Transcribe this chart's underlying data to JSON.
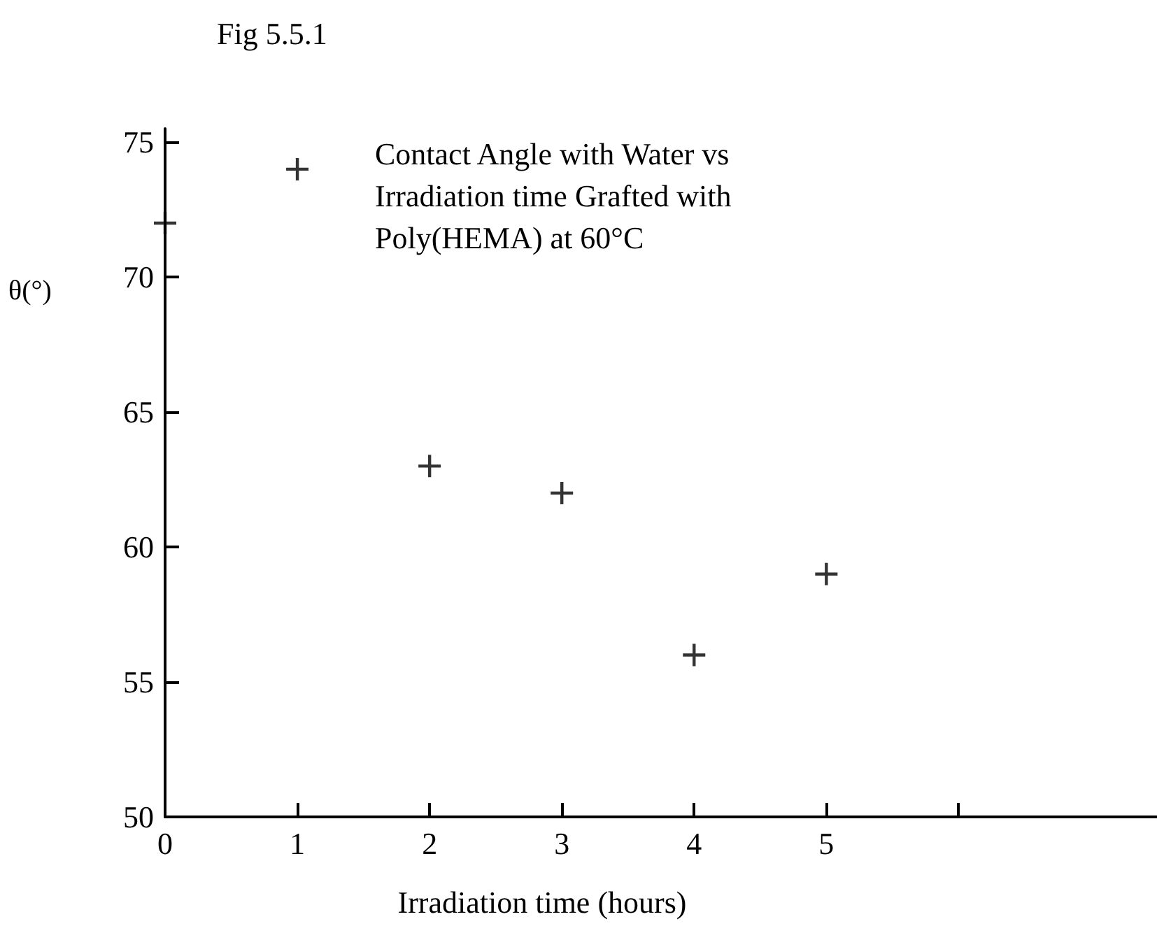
{
  "chart_data": {
    "type": "scatter",
    "title": "Fig 5.5.1",
    "xlabel": "Irradiation time (hours)",
    "ylabel": "θ(°)",
    "annotations": [
      "Contact Angle with Water vs Irradiation time Grafted with Poly(HEMA) at 60°C"
    ],
    "x": [
      0,
      1,
      2,
      3,
      4,
      5
    ],
    "values": [
      72,
      74,
      63,
      62,
      56,
      59
    ],
    "color": "#000000",
    "marker": "cross",
    "grid": false,
    "xlim": [
      0,
      7.5
    ],
    "xticks": [
      0,
      1,
      2,
      3,
      4,
      5,
      {
        "value": 6,
        "label": null
      }
    ],
    "ylim": [
      50,
      75.5
    ],
    "yticks": [
      50,
      55,
      60,
      65,
      70,
      75
    ]
  }
}
